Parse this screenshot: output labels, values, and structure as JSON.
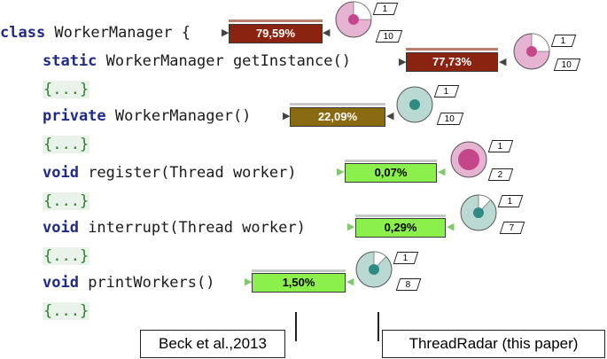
{
  "code": {
    "class_kw": "class",
    "class_rest": " WorkerManager {",
    "l1_kw": "static",
    "l1_rest": " WorkerManager getInstance()",
    "fold": "{...}",
    "l3_kw": "private",
    "l3_rest": " WorkerManager()",
    "l5_kw": "void",
    "l5_rest": " register(Thread worker)",
    "l7_kw": "void",
    "l7_rest": " interrupt(Thread worker)",
    "l9_kw": "void",
    "l9_rest": " printWorkers()"
  },
  "bars": [
    {
      "label": "79,59%",
      "value": 79.59,
      "color": "#8a2410"
    },
    {
      "label": "77,73%",
      "value": 77.73,
      "color": "#8a2410"
    },
    {
      "label": "22,09%",
      "value": 22.09,
      "color": "#8a6a10"
    },
    {
      "label": "0,07%",
      "value": 0.07,
      "color": "#8cf04c"
    },
    {
      "label": "0,29%",
      "value": 0.29,
      "color": "#8cf04c"
    },
    {
      "label": "1,50%",
      "value": 1.5,
      "color": "#8cf04c"
    }
  ],
  "radars": [
    {
      "top": "1",
      "bottom": "10",
      "ring": "#e6b3d3",
      "core": "#c4478a",
      "slice": 0.25
    },
    {
      "top": "1",
      "bottom": "10",
      "ring": "#e6b3d3",
      "core": "#c4478a",
      "slice": 0.25
    },
    {
      "top": "1",
      "bottom": "10",
      "ring": "#b9d9d2",
      "core": "#2f8a84",
      "slice": 0.0
    },
    {
      "top": "1",
      "bottom": "2",
      "ring": "#e6b3d3",
      "core": "#c4478a",
      "slice": 0.0
    },
    {
      "top": "1",
      "bottom": "7",
      "ring": "#b9d9d2",
      "core": "#2f8a84",
      "slice": 0.12
    },
    {
      "top": "1",
      "bottom": "8",
      "ring": "#b9d9d2",
      "core": "#2f8a84",
      "slice": 0.12
    }
  ],
  "captions": {
    "left": "Beck et al.,2013",
    "right": "ThreadRadar (this paper)"
  }
}
